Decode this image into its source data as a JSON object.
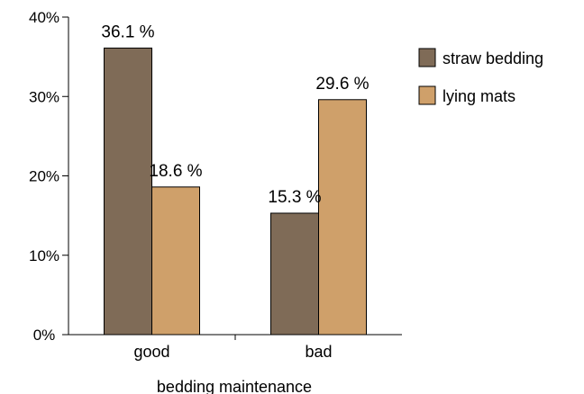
{
  "chart_data": {
    "type": "bar",
    "categories": [
      "good",
      "bad"
    ],
    "series": [
      {
        "name": "straw bedding",
        "values": [
          36.1,
          15.3
        ],
        "labels": [
          "36.1 %",
          "15.3 %"
        ],
        "color": "#7f6b57"
      },
      {
        "name": "lying mats",
        "values": [
          18.6,
          29.6
        ],
        "labels": [
          "18.6 %",
          "29.6 %"
        ],
        "color": "#cfa06a"
      }
    ],
    "yticks": [
      "0%",
      "10%",
      "20%",
      "30%",
      "40%"
    ],
    "ylim": [
      0,
      40
    ],
    "xlabel": "bedding maintenance",
    "ylabel": "",
    "title": "",
    "grid": false,
    "legend_position": "right"
  }
}
